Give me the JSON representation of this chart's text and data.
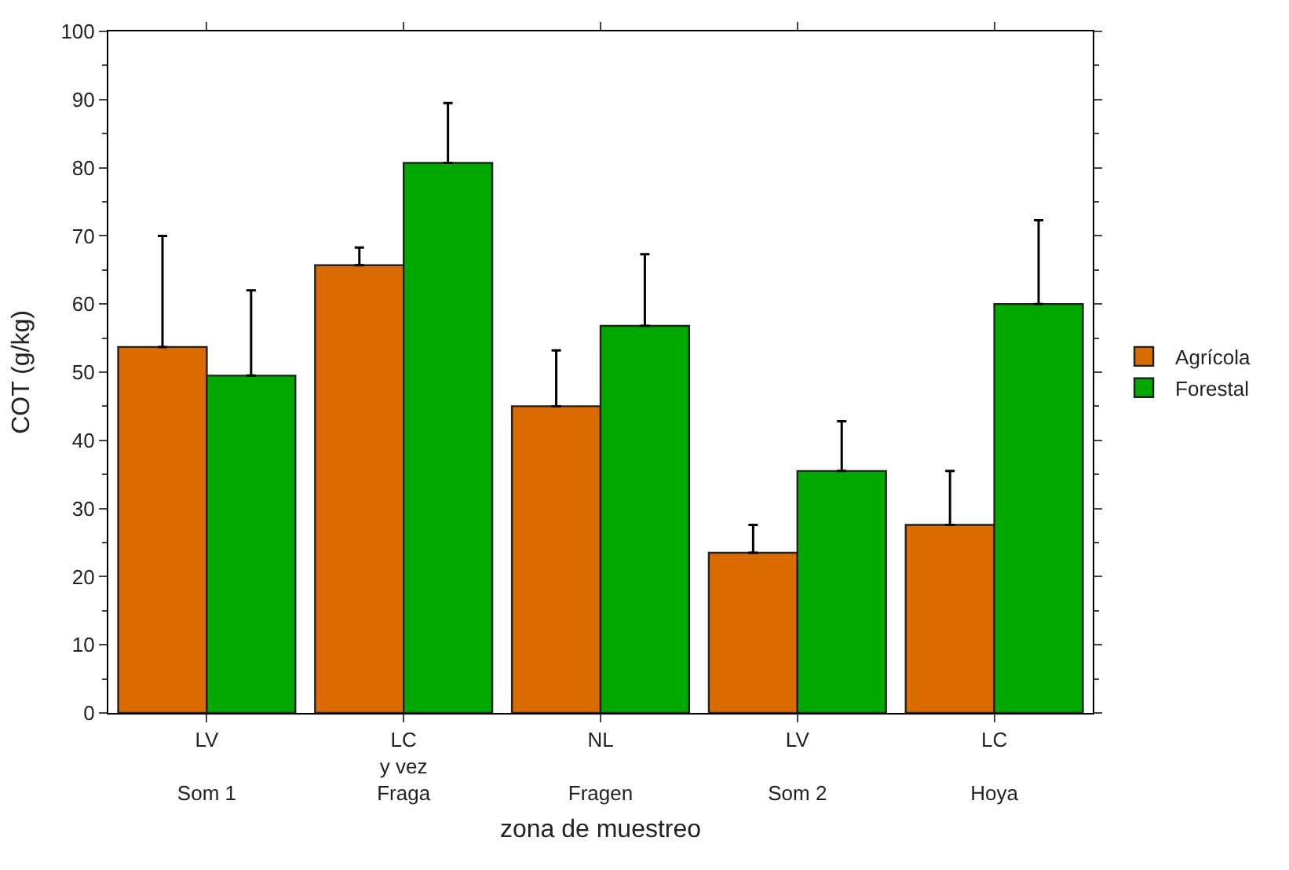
{
  "chart_data": {
    "type": "bar",
    "xlabel": "zona de muestreo",
    "ylabel": "COT (g/kg)",
    "categories": [
      "LV\n\nSom 1",
      "LC\ny vez\nFraga",
      "NL\n\nFragen",
      "LV\n\nSom 2",
      "LC\n\nHoya"
    ],
    "series": [
      {
        "name": "Agrícola",
        "color": "#d96b00",
        "values": [
          53.7,
          65.7,
          45,
          23.5,
          27.6
        ],
        "errors": [
          [
            53.7,
            70
          ],
          [
            65.7,
            68.3
          ],
          [
            45,
            53.2
          ],
          [
            23.5,
            27.6
          ],
          [
            27.6,
            35.5
          ]
        ]
      },
      {
        "name": "Forestal",
        "color": "#00a800",
        "values": [
          49.5,
          80.7,
          56.8,
          35.5,
          60
        ],
        "errors": [
          [
            49.5,
            62
          ],
          [
            80.7,
            89.5
          ],
          [
            56.8,
            67.3
          ],
          [
            35.5,
            42.8
          ],
          [
            60,
            72.3
          ]
        ]
      }
    ],
    "ylim": [
      0,
      100
    ],
    "yticks": [
      0,
      10,
      20,
      30,
      40,
      50,
      60,
      70,
      80,
      90,
      100
    ],
    "legend": "right"
  }
}
